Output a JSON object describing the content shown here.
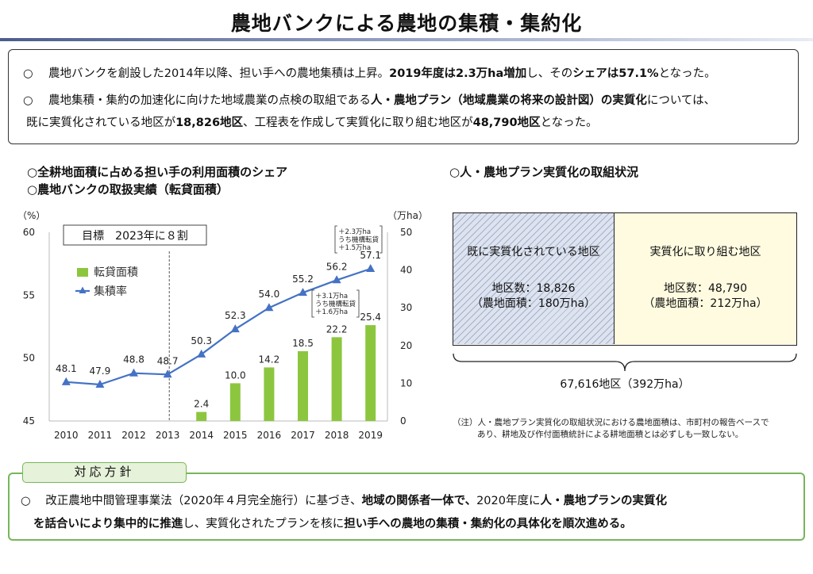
{
  "title": "農地バンクによる農地の集積・集約化",
  "summary": {
    "row1": {
      "mark": "○",
      "t1": "農地バンクを創設した2014年以降、担い手への農地集積は上昇。",
      "b1": "2019年度は2.3万ha増加",
      "t2": "し、その",
      "b2": "シェアは57.1%",
      "t3": "となった。"
    },
    "row2": {
      "mark": "○",
      "t1": "農地集積・集約の加速化に向けた地域農業の点検の取組である",
      "b1": "人・農地プラン（地域農業の将来の設計図）の実質化",
      "t2": "については、"
    },
    "row3": {
      "t1": "既に実質化されている地区が",
      "b1": "18,826地区",
      "t2": "、工程表を作成して実質化に取り組む地区が",
      "b2": "48,790地区",
      "t3": "となった。"
    }
  },
  "left_heading_1": "○全耕地面積に占める担い手の利用面積のシェア",
  "left_heading_2": "○農地バンクの取扱実績（転貸面積）",
  "right_heading": "○人・農地プラン実質化の取組状況",
  "chart_data": {
    "type": "bar+line",
    "categories": [
      "2010",
      "2011",
      "2012",
      "2013",
      "2014",
      "2015",
      "2016",
      "2017",
      "2018",
      "2019"
    ],
    "y_left_unit": "（%）",
    "y_right_unit": "（万ha）",
    "y_left_range": [
      45,
      60
    ],
    "y_left_ticks": [
      "45",
      "50",
      "55",
      "60"
    ],
    "y_right_range": [
      0,
      50
    ],
    "y_right_ticks": [
      "0",
      "10",
      "20",
      "30",
      "40",
      "50"
    ],
    "series": [
      {
        "name": "転貸面積",
        "kind": "bar",
        "axis": "right",
        "color": "#8cc63f",
        "values": [
          null,
          null,
          null,
          null,
          2.4,
          10.0,
          14.2,
          18.5,
          22.2,
          25.4
        ],
        "labels": [
          "",
          "",
          "",
          "",
          "2.4",
          "10.0",
          "14.2",
          "18.5",
          "22.2",
          "25.4"
        ]
      },
      {
        "name": "集積率",
        "kind": "line",
        "axis": "left",
        "color": "#4472c4",
        "values": [
          48.1,
          47.9,
          48.8,
          48.7,
          50.3,
          52.3,
          54.0,
          55.2,
          56.2,
          57.1
        ],
        "labels": [
          "48.1",
          "47.9",
          "48.8",
          "48.7",
          "50.3",
          "52.3",
          "54.0",
          "55.2",
          "56.2",
          "57.1"
        ]
      }
    ],
    "target_label": "目標　2023年に８割",
    "callout_2019": [
      "＋2.3万ha",
      "うち機構転貸",
      "＋1.5万ha"
    ],
    "callout_2018": [
      "＋3.1万ha",
      "うち機構転貸",
      "＋1.6万ha"
    ],
    "colors": {
      "bar": "#8cc63f",
      "line": "#4472c4"
    }
  },
  "plan": {
    "a_head": "既に実質化されている地区",
    "a_line1": "地区数：18,826",
    "a_line2": "（農地面積：180万ha）",
    "b_head": "実質化に取り組む地区",
    "b_line1": "地区数：48,790",
    "b_line2": "（農地面積：212万ha）",
    "total": "67,616地区（392万ha）",
    "note1": "（注）人・農地プラン実質化の取組状況における農地面積は、市町村の報告ベースで",
    "note2": "あり、耕地及び作付面積統計による耕地面積とは必ずしも一致しない。"
  },
  "policy": {
    "tab": "対応方針",
    "mark": "○",
    "t1": "改正農地中間管理事業法（2020年４月完全施行）に基づき、",
    "b1": "地域の関係者一体で、",
    "t2": "2020年度に",
    "b2": "人・農地プランの実質化",
    "b3": "を話合いにより集中的に推進",
    "t3": "し、実質化されたプランを核に",
    "b4": "担い手への農地の集積・集約化の具体化を順次進める。"
  }
}
